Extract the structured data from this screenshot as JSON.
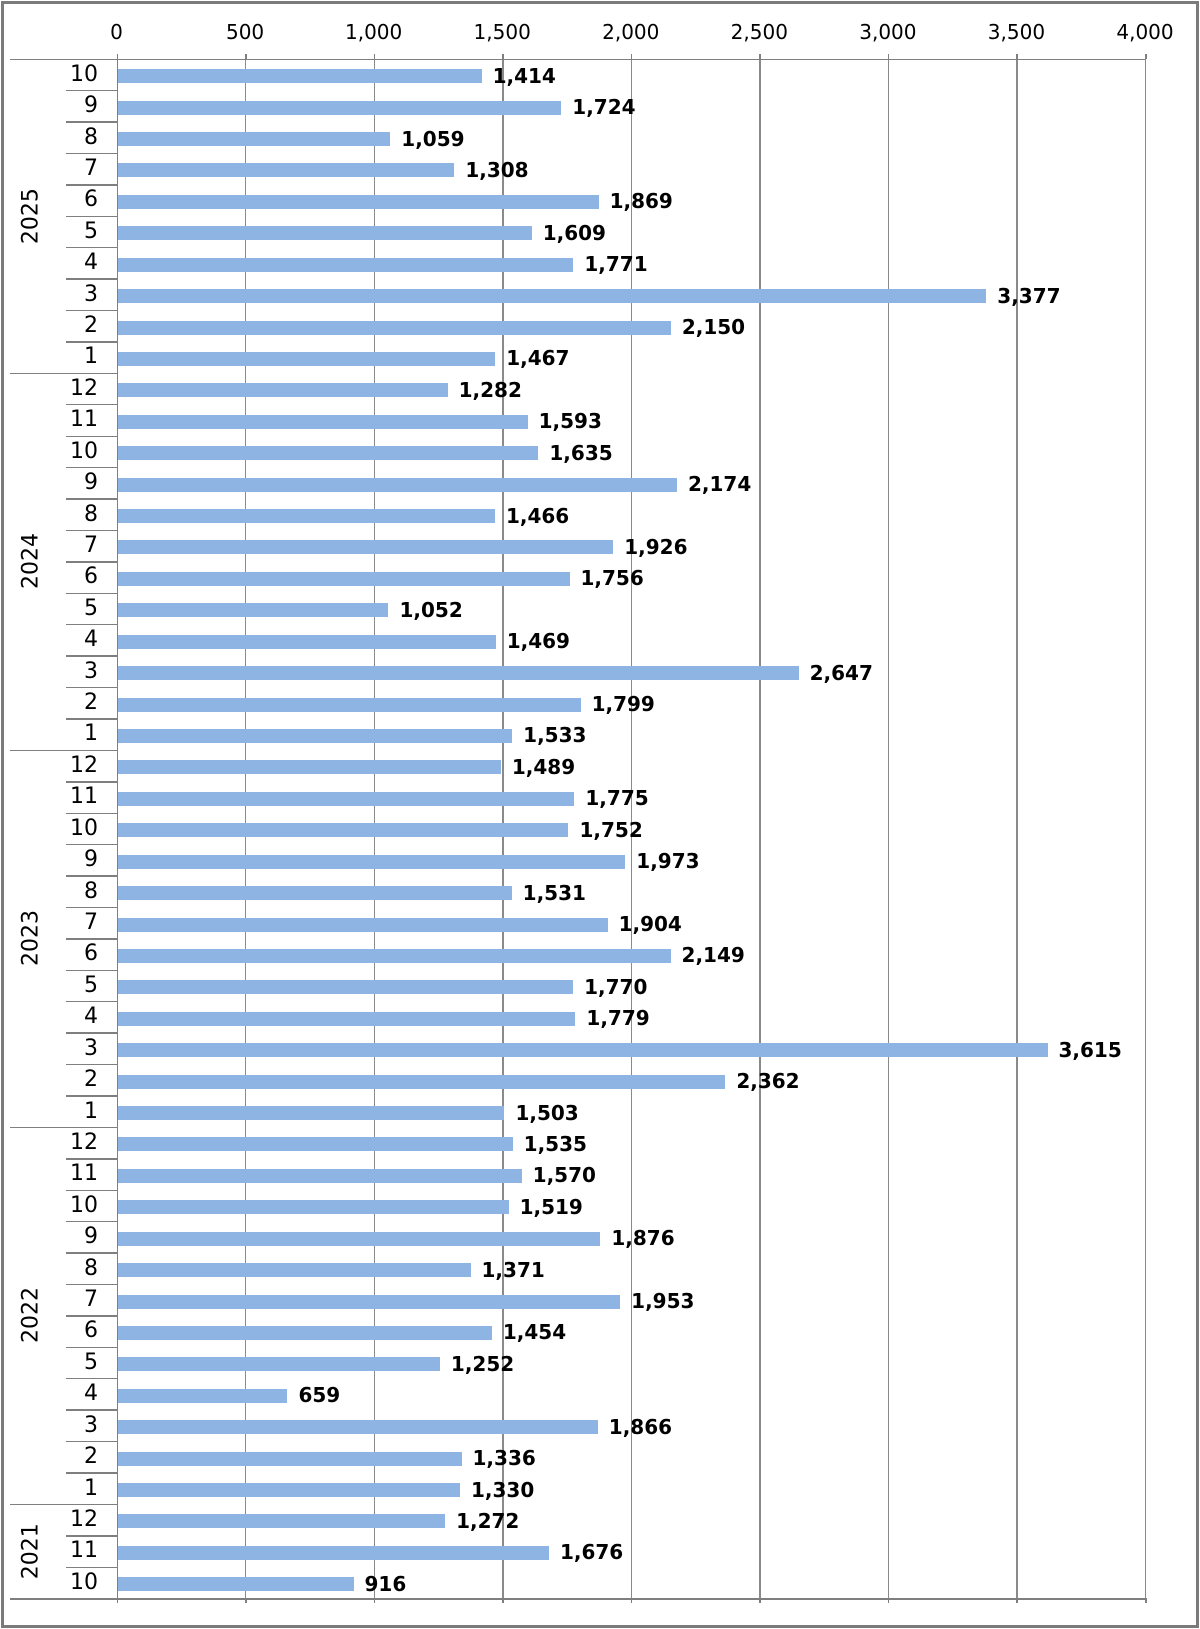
{
  "chart_data": {
    "type": "bar",
    "orientation": "horizontal",
    "title": "",
    "xlabel": "",
    "ylabel": "",
    "x_axis": {
      "position": "top",
      "min": 0,
      "max": 4000,
      "tick_step": 500,
      "ticks": [
        0,
        500,
        1000,
        1500,
        2000,
        2500,
        3000,
        3500,
        4000
      ],
      "tick_labels": [
        "0",
        "500",
        "1,000",
        "1,500",
        "2,000",
        "2,500",
        "3,000",
        "3,500",
        "4,000"
      ]
    },
    "y_axis": {
      "outer_level": "year",
      "inner_level": "month",
      "order": "top-to-bottom"
    },
    "grid": true,
    "legend": null,
    "data_labels": true,
    "groups": [
      {
        "year": "2025",
        "months": [
          "10",
          "9",
          "8",
          "7",
          "6",
          "5",
          "4",
          "3",
          "2",
          "1"
        ],
        "values": [
          1414,
          1724,
          1059,
          1308,
          1869,
          1609,
          1771,
          3377,
          2150,
          1467
        ]
      },
      {
        "year": "2024",
        "months": [
          "12",
          "11",
          "10",
          "9",
          "8",
          "7",
          "6",
          "5",
          "4",
          "3",
          "2",
          "1"
        ],
        "values": [
          1282,
          1593,
          1635,
          2174,
          1466,
          1926,
          1756,
          1052,
          1469,
          2647,
          1799,
          1533
        ]
      },
      {
        "year": "2023",
        "months": [
          "12",
          "11",
          "10",
          "9",
          "8",
          "7",
          "6",
          "5",
          "4",
          "3",
          "2",
          "1"
        ],
        "values": [
          1489,
          1775,
          1752,
          1973,
          1531,
          1904,
          2149,
          1770,
          1779,
          3615,
          2362,
          1503
        ]
      },
      {
        "year": "2022",
        "months": [
          "12",
          "11",
          "10",
          "9",
          "8",
          "7",
          "6",
          "5",
          "4",
          "3",
          "2",
          "1"
        ],
        "values": [
          1535,
          1570,
          1519,
          1876,
          1371,
          1953,
          1454,
          1252,
          659,
          1866,
          1336,
          1330
        ]
      },
      {
        "year": "2021",
        "months": [
          "12",
          "11",
          "10"
        ],
        "values": [
          1272,
          1676,
          916
        ]
      }
    ]
  },
  "colors": {
    "bar": "#8EB4E3",
    "gridline": "#8A8A8A",
    "axis_line": "#7F7F7F",
    "frame": "#7B7B7B",
    "text": "#000000",
    "background": "#FFFFFF"
  }
}
